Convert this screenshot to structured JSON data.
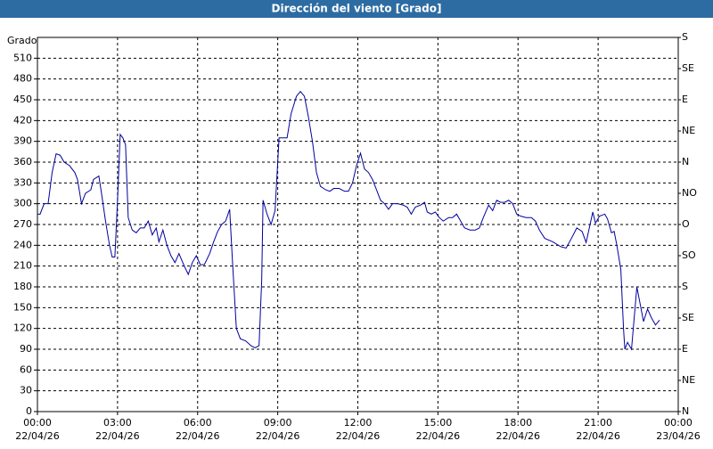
{
  "chart_data": {
    "type": "line",
    "title": "Dirección del viento [Grado]",
    "ylabel": "Grado",
    "xlim": [
      0,
      24
    ],
    "xticks": [
      {
        "value": 0,
        "label": "00:00"
      },
      {
        "value": 3,
        "label": "03:00"
      },
      {
        "value": 6,
        "label": "06:00"
      },
      {
        "value": 9,
        "label": "09:00"
      },
      {
        "value": 12,
        "label": "12:00"
      },
      {
        "value": 15,
        "label": "15:00"
      },
      {
        "value": 18,
        "label": "18:00"
      },
      {
        "value": 21,
        "label": "21:00"
      },
      {
        "value": 24,
        "label": "00:00"
      }
    ],
    "xtick_dates": [
      "22/04/26",
      "22/04/26",
      "22/04/26",
      "22/04/26",
      "22/04/26",
      "22/04/26",
      "22/04/26",
      "22/04/26",
      "23/04/26"
    ],
    "ylim": [
      0,
      540
    ],
    "yticks": [
      0,
      30,
      60,
      90,
      120,
      150,
      180,
      210,
      240,
      270,
      300,
      330,
      360,
      390,
      420,
      450,
      480,
      510
    ],
    "y2lim": [
      0,
      540
    ],
    "y2ticks": [
      {
        "value": 0,
        "label": "N"
      },
      {
        "value": 45,
        "label": "NE"
      },
      {
        "value": 90,
        "label": "E"
      },
      {
        "value": 135,
        "label": "SE"
      },
      {
        "value": 180,
        "label": "S"
      },
      {
        "value": 225,
        "label": "SO"
      },
      {
        "value": 270,
        "label": "O"
      },
      {
        "value": 315,
        "label": "NO"
      },
      {
        "value": 360,
        "label": "N"
      },
      {
        "value": 405,
        "label": "NE"
      },
      {
        "value": 450,
        "label": "E"
      },
      {
        "value": 495,
        "label": "SE"
      },
      {
        "value": 540,
        "label": "S"
      }
    ],
    "grid": true,
    "x": [
      0.0,
      0.1,
      0.25,
      0.4,
      0.55,
      0.7,
      0.85,
      1.0,
      1.2,
      1.4,
      1.5,
      1.65,
      1.8,
      2.0,
      2.1,
      2.3,
      2.4,
      2.55,
      2.7,
      2.8,
      2.9,
      3.0,
      3.1,
      3.2,
      3.3,
      3.4,
      3.55,
      3.7,
      3.85,
      4.0,
      4.15,
      4.3,
      4.45,
      4.55,
      4.7,
      4.85,
      5.0,
      5.15,
      5.3,
      5.5,
      5.65,
      5.8,
      5.95,
      6.1,
      6.25,
      6.45,
      6.6,
      6.75,
      6.9,
      7.05,
      7.2,
      7.3,
      7.45,
      7.6,
      7.8,
      8.0,
      8.15,
      8.3,
      8.4,
      8.45,
      8.6,
      8.75,
      8.9,
      9.05,
      9.2,
      9.35,
      9.5,
      9.7,
      9.85,
      10.0,
      10.15,
      10.3,
      10.45,
      10.6,
      10.8,
      10.95,
      11.1,
      11.3,
      11.5,
      11.65,
      11.8,
      11.95,
      12.1,
      12.25,
      12.4,
      12.55,
      12.7,
      12.85,
      13.0,
      13.15,
      13.3,
      13.5,
      13.7,
      13.85,
      14.0,
      14.15,
      14.35,
      14.5,
      14.6,
      14.75,
      14.9,
      15.05,
      15.2,
      15.4,
      15.55,
      15.7,
      15.85,
      16.0,
      16.2,
      16.4,
      16.55,
      16.7,
      16.9,
      17.05,
      17.2,
      17.35,
      17.5,
      17.65,
      17.8,
      17.95,
      18.1,
      18.3,
      18.5,
      18.65,
      18.8,
      19.0,
      19.3,
      19.6,
      19.8,
      20.0,
      20.2,
      20.4,
      20.55,
      20.8,
      20.9,
      21.05,
      21.25,
      21.35,
      21.5,
      21.6,
      21.7,
      21.85,
      21.95,
      22.0,
      22.1,
      22.25,
      22.45,
      22.55,
      22.7,
      22.85,
      23.0,
      23.15,
      23.3
    ],
    "series": [
      {
        "name": "Dirección del viento",
        "color": "#0000a0",
        "values": [
          285,
          285,
          300,
          300,
          345,
          372,
          370,
          360,
          355,
          345,
          335,
          300,
          315,
          320,
          335,
          340,
          315,
          275,
          240,
          223,
          223,
          305,
          400,
          395,
          385,
          280,
          262,
          258,
          265,
          265,
          275,
          255,
          265,
          245,
          262,
          240,
          225,
          215,
          228,
          210,
          198,
          215,
          225,
          212,
          212,
          228,
          245,
          260,
          270,
          275,
          292,
          220,
          120,
          105,
          102,
          95,
          92,
          95,
          190,
          305,
          285,
          270,
          290,
          395,
          395,
          395,
          430,
          455,
          462,
          455,
          425,
          390,
          345,
          325,
          320,
          318,
          322,
          322,
          318,
          318,
          330,
          355,
          373,
          350,
          345,
          335,
          320,
          305,
          300,
          292,
          300,
          300,
          298,
          295,
          285,
          295,
          298,
          302,
          288,
          285,
          288,
          280,
          275,
          280,
          280,
          285,
          275,
          265,
          262,
          262,
          265,
          280,
          298,
          290,
          305,
          302,
          302,
          305,
          300,
          285,
          282,
          280,
          280,
          275,
          262,
          250,
          245,
          238,
          236,
          250,
          265,
          260,
          244,
          288,
          272,
          282,
          285,
          278,
          258,
          260,
          240,
          205,
          120,
          90,
          100,
          90,
          180,
          160,
          130,
          148,
          135,
          125,
          132
        ]
      }
    ]
  }
}
